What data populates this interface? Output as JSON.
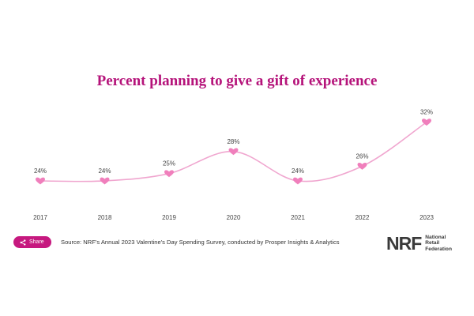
{
  "chart_data": {
    "type": "line",
    "title": "Percent planning to give a gift of experience",
    "categories": [
      "2017",
      "2018",
      "2019",
      "2020",
      "2021",
      "2022",
      "2023"
    ],
    "values": [
      24,
      24,
      25,
      28,
      24,
      26,
      32
    ],
    "data_labels": [
      "24%",
      "24%",
      "25%",
      "28%",
      "24%",
      "26%",
      "32%"
    ],
    "marker": "heart",
    "line_color": "#f0a6cf",
    "marker_color": "#f07fbc",
    "title_color": "#b5137a",
    "grid": false,
    "legend": "none"
  },
  "footer": {
    "share_label": "Share",
    "share_icon": "share-icon",
    "source": "Source: NRF's Annual 2023 Valentine's Day Spending Survey, conducted by Prosper Insights & Analytics",
    "logo_mark": "NRF",
    "logo_lines": [
      "National",
      "Retail",
      "Federation"
    ]
  },
  "colors": {
    "accent": "#c6197f"
  }
}
